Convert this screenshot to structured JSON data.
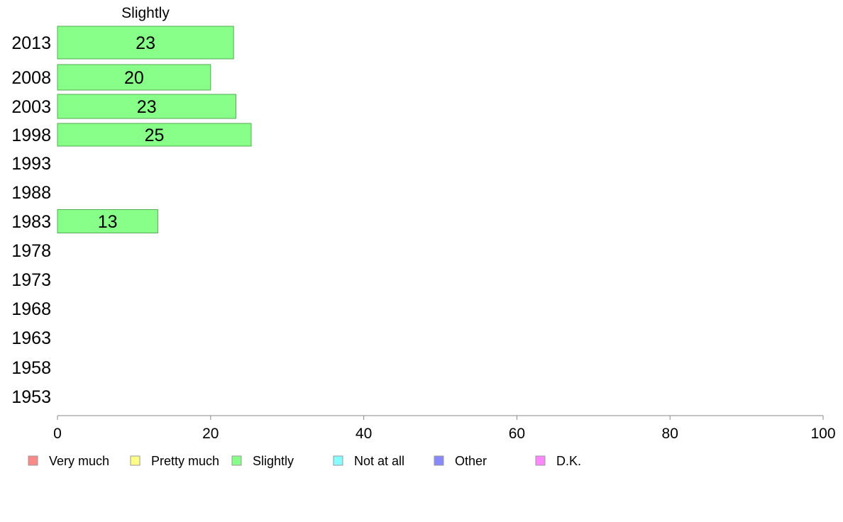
{
  "chart_data": {
    "type": "bar",
    "orientation": "horizontal",
    "title": "Slightly",
    "xlim": [
      0,
      100
    ],
    "xticks": [
      0,
      20,
      40,
      60,
      80,
      100
    ],
    "categories": [
      "2013",
      "2008",
      "2003",
      "1998",
      "1993",
      "1988",
      "1983",
      "1978",
      "1973",
      "1968",
      "1963",
      "1958",
      "1953"
    ],
    "series": [
      {
        "name": "Slightly",
        "color": "#88ff88",
        "values": [
          23,
          20,
          23.3,
          25.3,
          null,
          null,
          13.1,
          null,
          null,
          null,
          null,
          null,
          null
        ],
        "labels": [
          "23",
          "20",
          "23",
          "25",
          "",
          "",
          "13",
          "",
          "",
          "",
          "",
          "",
          ""
        ]
      }
    ],
    "legend": {
      "position": "bottom",
      "items": [
        {
          "label": "Very much",
          "color": "#ff8888"
        },
        {
          "label": "Pretty much",
          "color": "#ffff88"
        },
        {
          "label": "Slightly",
          "color": "#88ff88"
        },
        {
          "label": "Not at all",
          "color": "#88ffff"
        },
        {
          "label": "Other",
          "color": "#8888ff"
        },
        {
          "label": "D.K.",
          "color": "#ff88ff"
        }
      ]
    },
    "grid": false
  }
}
